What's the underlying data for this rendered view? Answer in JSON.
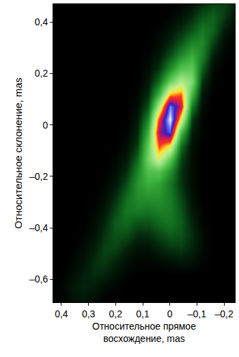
{
  "chart_data": {
    "type": "heatmap",
    "xlabel": "Относительное прямое восхождение, mas",
    "ylabel": "Относительное склонение, mas",
    "grid": false,
    "xlim": [
      0.43,
      -0.24
    ],
    "ylim": [
      -0.69,
      0.47
    ],
    "xticks": [
      {
        "value": 0.4,
        "label": "0,4"
      },
      {
        "value": 0.3,
        "label": "0,3"
      },
      {
        "value": 0.2,
        "label": "0,2"
      },
      {
        "value": 0.1,
        "label": "0,1"
      },
      0,
      {
        "value": -0.1,
        "label": "–0,1"
      },
      {
        "value": -0.2,
        "label": "–0,2"
      }
    ],
    "yticks": [
      {
        "value": 0.4,
        "label": "0,4"
      },
      {
        "value": 0.2,
        "label": "0,2"
      },
      0,
      {
        "value": -0.2,
        "label": "–0,2"
      },
      {
        "value": -0.4,
        "label": "–0,4"
      },
      {
        "value": -0.6,
        "label": "–0,6"
      }
    ],
    "zlim": [
      0,
      100
    ],
    "x": [
      0.4,
      0.36,
      0.32,
      0.28,
      0.24,
      0.2,
      0.16,
      0.12,
      0.08,
      0.04,
      0.0,
      -0.04,
      -0.08,
      -0.12,
      -0.16,
      -0.2,
      -0.24
    ],
    "y": [
      -0.68,
      -0.63,
      -0.58,
      -0.53,
      -0.48,
      -0.43,
      -0.38,
      -0.33,
      -0.28,
      -0.23,
      -0.18,
      -0.13,
      -0.08,
      -0.03,
      0.02,
      0.07,
      0.12,
      0.17,
      0.22,
      0.27,
      0.32,
      0.37,
      0.42,
      0.47
    ],
    "z": [
      [
        0,
        3,
        4,
        2,
        0,
        0,
        0,
        0,
        0,
        0,
        0,
        0,
        0,
        0,
        0,
        0,
        0
      ],
      [
        1,
        4,
        6,
        5,
        2,
        1,
        0,
        0,
        0,
        0,
        0,
        0,
        0,
        0,
        0,
        0,
        0
      ],
      [
        0,
        2,
        5,
        7,
        6,
        3,
        1,
        0,
        0,
        0,
        0,
        0,
        0,
        0,
        0,
        0,
        0
      ],
      [
        0,
        1,
        3,
        7,
        9,
        6,
        3,
        1,
        1,
        2,
        3,
        4,
        3,
        1,
        0,
        0,
        0
      ],
      [
        0,
        0,
        2,
        5,
        10,
        10,
        6,
        3,
        3,
        6,
        8,
        9,
        6,
        2,
        0,
        0,
        0
      ],
      [
        0,
        0,
        1,
        3,
        8,
        12,
        11,
        7,
        7,
        10,
        13,
        12,
        7,
        2,
        0,
        0,
        0
      ],
      [
        0,
        0,
        0,
        2,
        6,
        13,
        15,
        12,
        12,
        15,
        17,
        13,
        6,
        1,
        0,
        0,
        0
      ],
      [
        0,
        0,
        0,
        1,
        4,
        10,
        17,
        18,
        17,
        19,
        18,
        12,
        4,
        1,
        0,
        0,
        0
      ],
      [
        0,
        0,
        0,
        0,
        2,
        7,
        15,
        21,
        22,
        22,
        18,
        10,
        3,
        0,
        0,
        0,
        0
      ],
      [
        0,
        0,
        0,
        0,
        1,
        4,
        11,
        22,
        27,
        25,
        17,
        8,
        2,
        0,
        0,
        0,
        0
      ],
      [
        0,
        0,
        0,
        0,
        0,
        2,
        7,
        19,
        32,
        33,
        22,
        8,
        2,
        0,
        0,
        0,
        0
      ],
      [
        0,
        0,
        0,
        0,
        0,
        1,
        4,
        14,
        38,
        55,
        35,
        10,
        2,
        0,
        0,
        0,
        0
      ],
      [
        0,
        0,
        0,
        0,
        0,
        0,
        2,
        9,
        35,
        68,
        58,
        16,
        3,
        0,
        0,
        0,
        0
      ],
      [
        0,
        0,
        0,
        0,
        0,
        0,
        1,
        6,
        28,
        78,
        88,
        30,
        5,
        1,
        0,
        0,
        0
      ],
      [
        0,
        0,
        0,
        0,
        0,
        0,
        0,
        4,
        20,
        70,
        100,
        55,
        9,
        1,
        0,
        0,
        0
      ],
      [
        0,
        0,
        0,
        0,
        0,
        0,
        0,
        2,
        12,
        48,
        92,
        75,
        18,
        2,
        0,
        0,
        0
      ],
      [
        0,
        0,
        0,
        0,
        0,
        0,
        0,
        1,
        7,
        28,
        62,
        66,
        30,
        4,
        0,
        0,
        0
      ],
      [
        0,
        0,
        0,
        0,
        0,
        0,
        0,
        0,
        4,
        15,
        35,
        48,
        40,
        8,
        1,
        0,
        0
      ],
      [
        0,
        0,
        0,
        0,
        0,
        0,
        0,
        0,
        2,
        8,
        20,
        32,
        34,
        14,
        2,
        0,
        0
      ],
      [
        0,
        0,
        0,
        0,
        0,
        0,
        0,
        0,
        1,
        4,
        11,
        20,
        27,
        19,
        5,
        1,
        0
      ],
      [
        0,
        0,
        0,
        0,
        0,
        0,
        0,
        0,
        0,
        2,
        6,
        12,
        19,
        20,
        10,
        2,
        0
      ],
      [
        0,
        0,
        0,
        0,
        0,
        0,
        0,
        0,
        0,
        1,
        3,
        7,
        12,
        17,
        14,
        5,
        1
      ],
      [
        0,
        0,
        0,
        0,
        0,
        0,
        0,
        0,
        0,
        0,
        1,
        3,
        7,
        12,
        14,
        9,
        3
      ],
      [
        0,
        0,
        0,
        0,
        0,
        0,
        0,
        0,
        0,
        0,
        0,
        1,
        3,
        7,
        10,
        10,
        6
      ]
    ]
  }
}
